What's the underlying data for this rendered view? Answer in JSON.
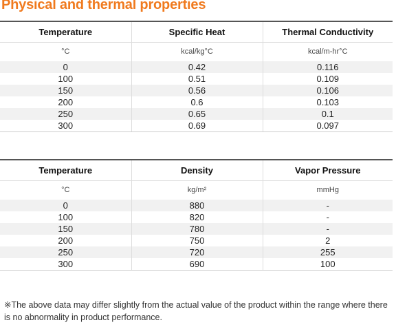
{
  "title": "Physical and thermal properties",
  "table1": {
    "headers": [
      "Temperature",
      "Specific Heat",
      "Thermal Conductivity"
    ],
    "units": [
      "°C",
      "kcal/kg°C",
      "kcal/m-hr°C"
    ],
    "rows": [
      [
        "0",
        "0.42",
        "0.116"
      ],
      [
        "100",
        "0.51",
        "0.109"
      ],
      [
        "150",
        "0.56",
        "0.106"
      ],
      [
        "200",
        "0.6",
        "0.103"
      ],
      [
        "250",
        "0.65",
        "0.1"
      ],
      [
        "300",
        "0.69",
        "0.097"
      ]
    ]
  },
  "table2": {
    "headers": [
      "Temperature",
      "Density",
      "Vapor Pressure"
    ],
    "units": [
      "°C",
      "kg/m²",
      "mmHg"
    ],
    "rows": [
      [
        "0",
        "880",
        "-"
      ],
      [
        "100",
        "820",
        "-"
      ],
      [
        "150",
        "780",
        "-"
      ],
      [
        "200",
        "750",
        "2"
      ],
      [
        "250",
        "720",
        "255"
      ],
      [
        "300",
        "690",
        "100"
      ]
    ]
  },
  "note": "※The above data may differ slightly from the actual value of the product within the range where there is no abnormality in product performance.",
  "colors": {
    "title": "#f07a1e",
    "stripe": "#f1f1f1"
  }
}
